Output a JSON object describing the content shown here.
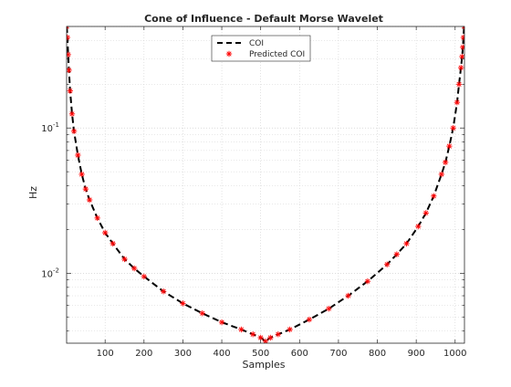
{
  "colors": {
    "background": "#ffffff",
    "axes": "#262626",
    "grid": "#d0d0d0",
    "coi_line": "#000000",
    "predicted_marker": "#ff0000"
  },
  "chart_data": {
    "type": "line",
    "title": "Cone of Influence - Default Morse Wavelet",
    "xlabel": "Samples",
    "ylabel": "Hz",
    "xlim": [
      1,
      1024
    ],
    "ylim": [
      0.0033,
      0.5
    ],
    "yscale": "log",
    "grid": true,
    "minor_grid": true,
    "legend_placement": "top-center",
    "x_ticks": [
      100,
      200,
      300,
      400,
      500,
      600,
      700,
      800,
      900,
      1000
    ],
    "x_tick_labels": [
      "100",
      "200",
      "300",
      "400",
      "500",
      "600",
      "700",
      "800",
      "900",
      "1000"
    ],
    "y_ticks": [
      0.01,
      0.1
    ],
    "y_tick_labels": [
      {
        "base": "10",
        "exp": "-2"
      },
      {
        "base": "10",
        "exp": "-1"
      }
    ],
    "series": [
      {
        "name": "COI",
        "style": "dashed-line",
        "color": "#000000",
        "x": [
          1.5,
          3,
          5,
          7,
          10,
          15,
          20,
          30,
          40,
          50,
          60,
          80,
          100,
          120,
          150,
          175,
          200,
          250,
          300,
          350,
          400,
          450,
          480,
          500,
          512.5,
          525,
          545,
          575,
          625,
          675,
          725,
          775,
          825,
          850,
          875,
          905,
          925,
          945,
          965,
          975,
          985,
          995,
          1005,
          1010,
          1015,
          1018,
          1020,
          1021.5,
          1023
        ],
        "y": [
          0.5,
          0.42,
          0.32,
          0.25,
          0.18,
          0.125,
          0.095,
          0.065,
          0.048,
          0.038,
          0.032,
          0.024,
          0.019,
          0.016,
          0.0125,
          0.0108,
          0.0095,
          0.0075,
          0.0062,
          0.0053,
          0.0046,
          0.0041,
          0.0038,
          0.0036,
          0.0034,
          0.0036,
          0.0038,
          0.0041,
          0.0048,
          0.0057,
          0.007,
          0.0088,
          0.0115,
          0.0135,
          0.016,
          0.021,
          0.026,
          0.034,
          0.048,
          0.058,
          0.075,
          0.1,
          0.15,
          0.2,
          0.26,
          0.31,
          0.36,
          0.42,
          0.5
        ]
      },
      {
        "name": "Predicted COI",
        "style": "asterisk-markers",
        "color": "#ff0000",
        "x": [
          1.5,
          3,
          5,
          7,
          10,
          15,
          20,
          30,
          40,
          50,
          60,
          80,
          100,
          120,
          150,
          175,
          200,
          250,
          300,
          350,
          400,
          450,
          480,
          500,
          512.5,
          525,
          545,
          575,
          625,
          675,
          725,
          775,
          825,
          850,
          875,
          905,
          925,
          945,
          965,
          975,
          985,
          995,
          1005,
          1010,
          1015,
          1018,
          1020,
          1021.5,
          1023
        ],
        "y": [
          0.5,
          0.42,
          0.32,
          0.25,
          0.18,
          0.125,
          0.095,
          0.065,
          0.048,
          0.038,
          0.032,
          0.024,
          0.019,
          0.016,
          0.0125,
          0.0108,
          0.0095,
          0.0075,
          0.0062,
          0.0053,
          0.0046,
          0.0041,
          0.0038,
          0.0036,
          0.0034,
          0.0036,
          0.0038,
          0.0041,
          0.0048,
          0.0057,
          0.007,
          0.0088,
          0.0115,
          0.0135,
          0.016,
          0.021,
          0.026,
          0.034,
          0.048,
          0.058,
          0.075,
          0.1,
          0.15,
          0.2,
          0.26,
          0.31,
          0.36,
          0.42,
          0.5
        ]
      }
    ]
  }
}
